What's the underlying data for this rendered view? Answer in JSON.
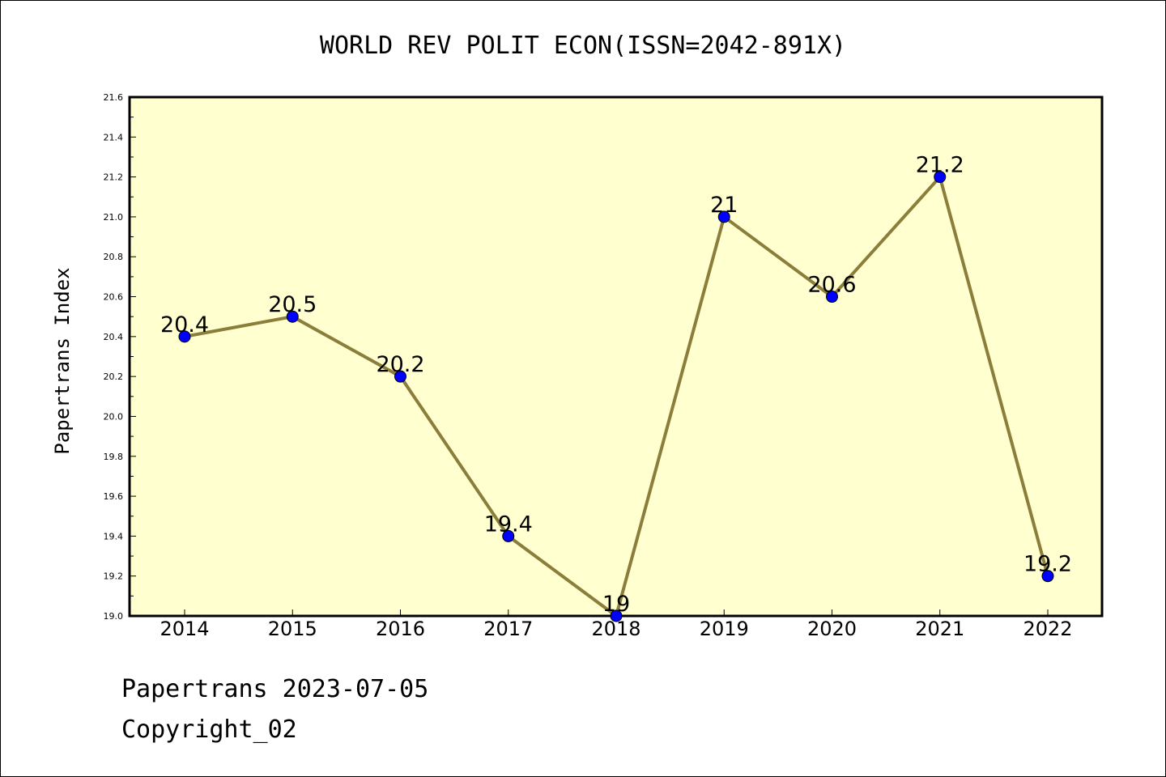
{
  "chart_data": {
    "type": "line",
    "title": "WORLD REV POLIT ECON(ISSN=2042-891X)",
    "xlabel": "",
    "ylabel": "Papertrans Index",
    "categories": [
      "2014",
      "2015",
      "2016",
      "2017",
      "2018",
      "2019",
      "2020",
      "2021",
      "2022"
    ],
    "values": [
      20.4,
      20.5,
      20.2,
      19.4,
      19.0,
      21.0,
      20.6,
      21.2,
      19.2
    ],
    "data_labels": [
      "20.4",
      "20.5",
      "20.2",
      "19.4",
      "19",
      "21",
      "20.6",
      "21.2",
      "19.2"
    ],
    "ylim": [
      19.0,
      21.6
    ],
    "yticks": [
      "19.0",
      "19.2",
      "19.4",
      "19.6",
      "19.8",
      "20.0",
      "20.2",
      "20.4",
      "20.6",
      "20.8",
      "21.0",
      "21.2",
      "21.4",
      "21.6"
    ],
    "grid": false,
    "legend": "none",
    "colors": {
      "plot_background": "#ffffd0",
      "line": "#8b7d3a",
      "marker": "#0000ff"
    }
  },
  "footer": {
    "line1": "Papertrans 2023-07-05",
    "line2": "Copyright_02"
  }
}
